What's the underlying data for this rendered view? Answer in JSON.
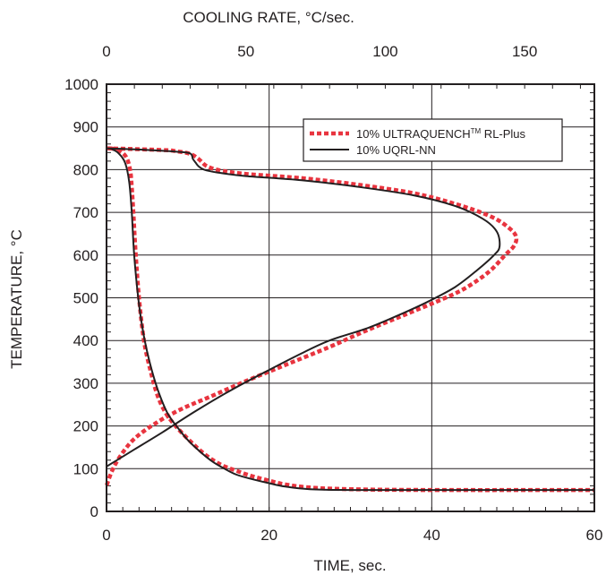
{
  "chart_data": {
    "type": "line",
    "title": "",
    "xlabel": "TIME, sec.",
    "ylabel": "TEMPERATURE, °C",
    "x2label": "COOLING RATE, °C/sec.",
    "xlim": [
      0,
      60
    ],
    "x2lim": [
      0,
      175
    ],
    "ylim": [
      0,
      1000
    ],
    "x_ticks": [
      "0",
      "20",
      "40",
      "60"
    ],
    "x2_ticks": [
      "0",
      "50",
      "100",
      "150"
    ],
    "y_ticks": [
      "0",
      "100",
      "200",
      "300",
      "400",
      "500",
      "600",
      "700",
      "800",
      "900",
      "1000"
    ],
    "grid": true,
    "legend_position": "top-right",
    "series": [
      {
        "name": "10% ULTRAQUENCH",
        "tm": "TM",
        "name_suffix": " RL-Plus",
        "color": "#e8343f",
        "style": "dotted",
        "time_curve": [
          [
            0.5,
            850
          ],
          [
            1.5,
            845
          ],
          [
            2.4,
            830
          ],
          [
            2.9,
            800
          ],
          [
            3.1,
            760
          ],
          [
            3.3,
            700
          ],
          [
            3.6,
            600
          ],
          [
            4.0,
            500
          ],
          [
            4.6,
            400
          ],
          [
            5.4,
            330
          ],
          [
            6.3,
            270
          ],
          [
            7.3,
            230
          ],
          [
            8.5,
            200
          ],
          [
            10,
            170
          ],
          [
            12,
            135
          ],
          [
            14,
            110
          ],
          [
            16,
            95
          ],
          [
            18,
            82
          ],
          [
            20,
            72
          ],
          [
            22,
            63
          ],
          [
            25,
            56
          ],
          [
            30,
            52
          ],
          [
            40,
            50
          ],
          [
            60,
            50
          ]
        ],
        "rate_curve": [
          [
            0,
            850
          ],
          [
            20,
            846
          ],
          [
            25,
            843
          ],
          [
            30,
            837
          ],
          [
            33,
            825
          ],
          [
            36,
            808
          ],
          [
            41,
            798
          ],
          [
            50,
            790
          ],
          [
            70,
            780
          ],
          [
            90,
            765
          ],
          [
            110,
            745
          ],
          [
            125,
            720
          ],
          [
            138,
            690
          ],
          [
            145,
            660
          ],
          [
            147,
            640
          ],
          [
            146,
            620
          ],
          [
            143,
            600
          ],
          [
            137,
            560
          ],
          [
            128,
            520
          ],
          [
            118,
            490
          ],
          [
            105,
            455
          ],
          [
            92,
            420
          ],
          [
            80,
            385
          ],
          [
            65,
            345
          ],
          [
            50,
            305
          ],
          [
            37,
            268
          ],
          [
            27,
            240
          ],
          [
            18,
            208
          ],
          [
            10,
            170
          ],
          [
            5,
            130
          ],
          [
            2,
            95
          ],
          [
            0,
            60
          ]
        ]
      },
      {
        "name": "10% UQRL-NN",
        "color": "#231f20",
        "style": "solid",
        "time_curve": [
          [
            0.5,
            850
          ],
          [
            1.5,
            838
          ],
          [
            2.3,
            815
          ],
          [
            2.8,
            770
          ],
          [
            3.1,
            700
          ],
          [
            3.4,
            600
          ],
          [
            3.9,
            500
          ],
          [
            4.5,
            420
          ],
          [
            5.3,
            350
          ],
          [
            6.3,
            285
          ],
          [
            7.5,
            230
          ],
          [
            8.8,
            195
          ],
          [
            10,
            167
          ],
          [
            11.5,
            140
          ],
          [
            13,
            117
          ],
          [
            14.5,
            100
          ],
          [
            16,
            86
          ],
          [
            18,
            75
          ],
          [
            20,
            66
          ],
          [
            22,
            58
          ],
          [
            25,
            52
          ],
          [
            30,
            50
          ],
          [
            40,
            50
          ],
          [
            60,
            50
          ]
        ],
        "rate_curve": [
          [
            0,
            850
          ],
          [
            15,
            846
          ],
          [
            25,
            842
          ],
          [
            30,
            838
          ],
          [
            31,
            825
          ],
          [
            32,
            816
          ],
          [
            33,
            808
          ],
          [
            35,
            800
          ],
          [
            40,
            793
          ],
          [
            50,
            785
          ],
          [
            70,
            775
          ],
          [
            90,
            760
          ],
          [
            110,
            740
          ],
          [
            125,
            715
          ],
          [
            135,
            685
          ],
          [
            140,
            655
          ],
          [
            141,
            620
          ],
          [
            139,
            600
          ],
          [
            133,
            565
          ],
          [
            125,
            525
          ],
          [
            115,
            490
          ],
          [
            105,
            460
          ],
          [
            94,
            430
          ],
          [
            80,
            400
          ],
          [
            70,
            370
          ],
          [
            58,
            330
          ],
          [
            45,
            285
          ],
          [
            32,
            235
          ],
          [
            20,
            185
          ],
          [
            10,
            145
          ],
          [
            0,
            105
          ]
        ]
      }
    ]
  }
}
